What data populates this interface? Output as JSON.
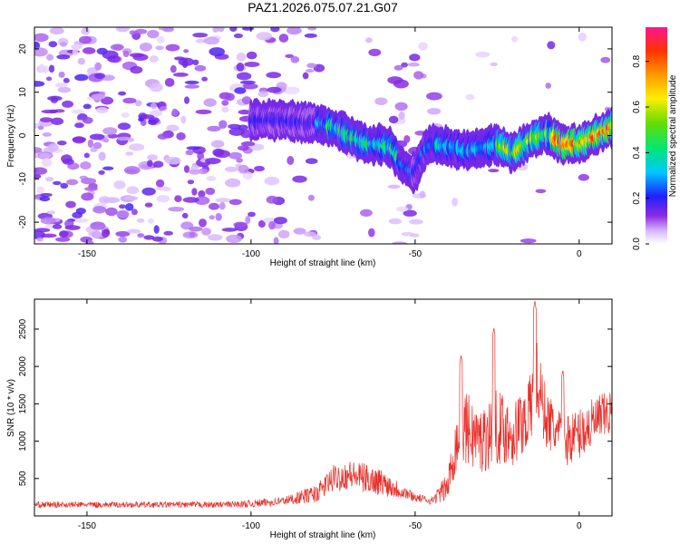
{
  "title": "PAZ1.2026.075.07.21.G07",
  "chart_data": [
    {
      "type": "heatmap",
      "xlabel": "Height of straight line (km)",
      "ylabel": "Frequency (Hz)",
      "xlim": [
        -166,
        10
      ],
      "ylim": [
        -25,
        25
      ],
      "xticks": [
        -150,
        -100,
        -50,
        0
      ],
      "yticks": [
        -20,
        -10,
        0,
        10,
        20
      ],
      "ridge": {
        "x": [
          -100,
          -95,
          -90,
          -85,
          -80,
          -75,
          -70,
          -65,
          -60,
          -57,
          -55,
          -52,
          -50,
          -47,
          -45,
          -40,
          -35,
          -30,
          -25,
          -20,
          -15,
          -10,
          -5,
          0,
          5,
          10
        ],
        "y": [
          3.5,
          3.5,
          3.5,
          3.0,
          3.0,
          2.0,
          0.0,
          -2.0,
          -2.0,
          -3.0,
          -6.0,
          -8.0,
          -8.5,
          -3.0,
          -2.0,
          -2.5,
          -3.5,
          -3.0,
          -2.0,
          -4.0,
          -1.0,
          0.5,
          -2.0,
          -2.0,
          0.0,
          2.0
        ]
      },
      "colorbar": {
        "label": "Normalized spectral amplitude",
        "range": [
          0,
          0.95
        ],
        "ticks": [
          0.0,
          0.2,
          0.4,
          0.6,
          0.8
        ]
      }
    },
    {
      "type": "line",
      "xlabel": "Height of straight line (km)",
      "ylabel": "SNR (10 * v/v)",
      "xlim": [
        -166,
        10
      ],
      "ylim": [
        0,
        2900
      ],
      "xticks": [
        -150,
        -100,
        -50,
        0
      ],
      "yticks": [
        500,
        1000,
        1500,
        2000,
        2500
      ],
      "series": [
        {
          "name": "SNR",
          "color": "#e8302a",
          "envelope": {
            "x": [
              -166,
              -110,
              -100,
              -90,
              -80,
              -75,
              -70,
              -65,
              -60,
              -55,
              -50,
              -45,
              -40,
              -38,
              -35,
              -30,
              -25,
              -20,
              -15,
              -13,
              -10,
              -5,
              0,
              5,
              10
            ],
            "mean": [
              150,
              150,
              160,
              200,
              300,
              500,
              550,
              500,
              450,
              350,
              250,
              200,
              400,
              900,
              1200,
              1000,
              1200,
              1100,
              1400,
              1800,
              1300,
              1000,
              1100,
              1250,
              1400
            ],
            "spread": [
              40,
              40,
              50,
              60,
              120,
              180,
              200,
              200,
              180,
              120,
              60,
              50,
              200,
              400,
              500,
              450,
              500,
              450,
              500,
              600,
              400,
              350,
              350,
              350,
              300
            ]
          },
          "peaks": [
            {
              "x": -13.5,
              "y": 2880
            },
            {
              "x": -26,
              "y": 2520
            },
            {
              "x": -36,
              "y": 2150
            },
            {
              "x": -5,
              "y": 1950
            }
          ]
        }
      ]
    }
  ]
}
